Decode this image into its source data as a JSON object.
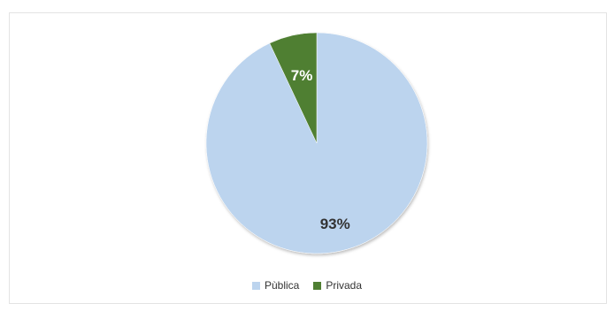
{
  "chart_data": {
    "type": "pie",
    "slices": [
      {
        "name": "Pùblica",
        "value": 93,
        "label": "93%",
        "color": "#bcd4ee",
        "label_color": "#333333"
      },
      {
        "name": "Privada",
        "value": 7,
        "label": "7%",
        "color": "#4f7f32",
        "label_color": "#ffffff"
      }
    ],
    "legend": "bottom",
    "title": ""
  }
}
